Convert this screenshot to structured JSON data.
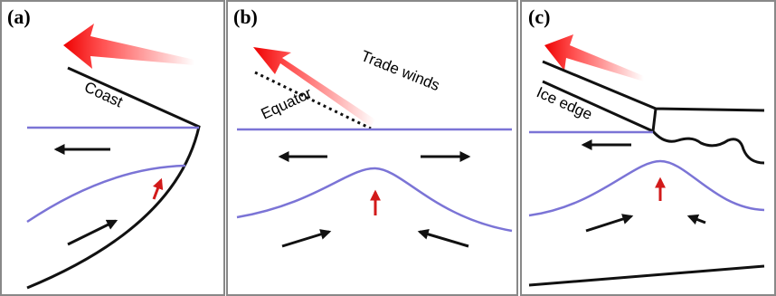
{
  "panels": [
    {
      "label": "(a)",
      "annotations": [
        "Coast"
      ]
    },
    {
      "label": "(b)",
      "annotations": [
        "Trade winds",
        "Equator"
      ]
    },
    {
      "label": "(c)",
      "annotations": [
        "Ice edge"
      ]
    }
  ]
}
